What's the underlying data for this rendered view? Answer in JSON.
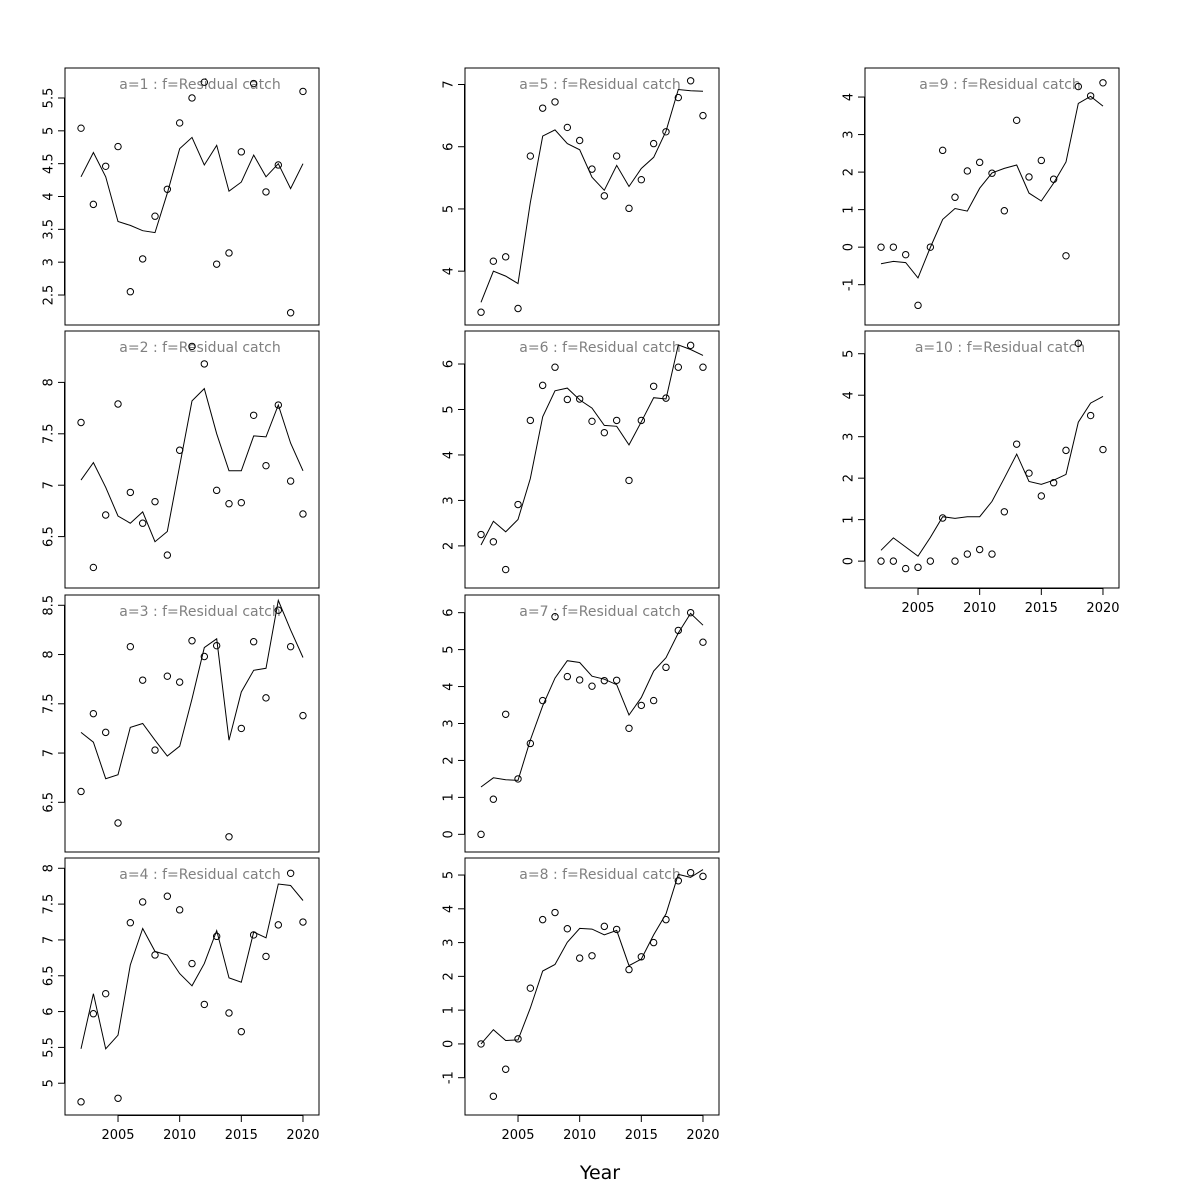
{
  "figure": {
    "xlabel": "Year",
    "colors": {
      "axes": "#000000",
      "title": "#808080",
      "background": "#ffffff"
    }
  },
  "chart_data": [
    {
      "type": "scatter",
      "title": "a=1  :  f=Residual catch",
      "ylim": [
        2.2,
        5.8
      ],
      "yticks": [
        2.5,
        3.0,
        3.5,
        4.0,
        4.5,
        5.0,
        5.5
      ],
      "x": [
        2002,
        2003,
        2004,
        2005,
        2006,
        2007,
        2008,
        2009,
        2010,
        2011,
        2012,
        2013,
        2014,
        2015,
        2016,
        2017,
        2018,
        2019,
        2020
      ],
      "series": [
        {
          "type": "points",
          "values": [
            5.04,
            3.88,
            4.46,
            4.76,
            2.55,
            3.05,
            3.7,
            4.11,
            5.12,
            5.5,
            5.74,
            2.97,
            3.14,
            4.68,
            5.72,
            4.07,
            4.48,
            2.23,
            5.6
          ]
        },
        {
          "type": "line",
          "values": [
            4.3,
            4.67,
            4.3,
            3.62,
            3.56,
            3.48,
            3.45,
            4.05,
            4.73,
            4.9,
            4.48,
            4.78,
            4.08,
            4.22,
            4.63,
            4.3,
            4.5,
            4.12,
            4.5
          ]
        }
      ],
      "show_x_axis": false
    },
    {
      "type": "scatter",
      "title": "a=2  :  f=Residual catch",
      "ylim": [
        6.1,
        8.4
      ],
      "yticks": [
        6.5,
        7.0,
        7.5,
        8.0
      ],
      "x": [
        2002,
        2003,
        2004,
        2005,
        2006,
        2007,
        2008,
        2009,
        2010,
        2011,
        2012,
        2013,
        2014,
        2015,
        2016,
        2017,
        2018,
        2019,
        2020
      ],
      "series": [
        {
          "type": "points",
          "values": [
            7.61,
            6.2,
            6.71,
            7.79,
            6.93,
            6.63,
            6.84,
            6.32,
            7.34,
            8.35,
            8.18,
            6.95,
            6.82,
            6.83,
            7.68,
            7.19,
            7.78,
            7.04,
            6.72
          ]
        },
        {
          "type": "line",
          "values": [
            7.05,
            7.22,
            6.98,
            6.7,
            6.63,
            6.74,
            6.45,
            6.55,
            7.19,
            7.82,
            7.94,
            7.5,
            7.14,
            7.14,
            7.48,
            7.47,
            7.78,
            7.41,
            7.14
          ]
        }
      ],
      "show_x_axis": false
    },
    {
      "type": "scatter",
      "title": "a=3  :  f=Residual catch",
      "ylim": [
        6.1,
        8.5
      ],
      "yticks": [
        6.5,
        7.0,
        7.5,
        8.0,
        8.5
      ],
      "x": [
        2002,
        2003,
        2004,
        2005,
        2006,
        2007,
        2008,
        2009,
        2010,
        2011,
        2012,
        2013,
        2014,
        2015,
        2016,
        2017,
        2018,
        2019,
        2020
      ],
      "series": [
        {
          "type": "points",
          "values": [
            6.61,
            7.4,
            7.21,
            6.29,
            8.08,
            7.74,
            7.03,
            7.78,
            7.72,
            8.14,
            7.98,
            8.09,
            6.15,
            7.25,
            8.13,
            7.56,
            8.45,
            8.08,
            7.38
          ]
        },
        {
          "type": "line",
          "values": [
            7.21,
            7.11,
            6.74,
            6.78,
            7.26,
            7.3,
            7.13,
            6.97,
            7.07,
            7.55,
            8.07,
            8.16,
            7.13,
            7.62,
            7.84,
            7.86,
            8.55,
            8.25,
            7.97
          ]
        }
      ],
      "show_x_axis": false
    },
    {
      "type": "scatter",
      "title": "a=4  :  f=Residual catch",
      "ylim": [
        4.7,
        8.0
      ],
      "yticks": [
        5.0,
        5.5,
        6.0,
        6.5,
        7.0,
        7.5,
        8.0
      ],
      "x": [
        2002,
        2003,
        2004,
        2005,
        2006,
        2007,
        2008,
        2009,
        2010,
        2011,
        2012,
        2013,
        2014,
        2015,
        2016,
        2017,
        2018,
        2019,
        2020
      ],
      "series": [
        {
          "type": "points",
          "values": [
            4.74,
            5.97,
            6.25,
            4.79,
            7.24,
            7.53,
            6.79,
            7.61,
            7.42,
            6.67,
            6.1,
            7.05,
            5.98,
            5.72,
            7.07,
            6.77,
            7.21,
            7.93,
            7.25
          ]
        },
        {
          "type": "line",
          "values": [
            5.48,
            6.25,
            5.48,
            5.67,
            6.65,
            7.16,
            6.84,
            6.79,
            6.53,
            6.36,
            6.67,
            7.13,
            6.47,
            6.41,
            7.11,
            7.03,
            7.78,
            7.76,
            7.55
          ]
        }
      ],
      "xticks": [
        2005,
        2010,
        2015,
        2020
      ],
      "show_x_axis": true
    },
    {
      "type": "scatter",
      "title": "a=5  :  f=Residual catch",
      "ylim": [
        3.3,
        7.1
      ],
      "yticks": [
        4,
        5,
        6,
        7
      ],
      "x": [
        2002,
        2003,
        2004,
        2005,
        2006,
        2007,
        2008,
        2009,
        2010,
        2011,
        2012,
        2013,
        2014,
        2015,
        2016,
        2017,
        2018,
        2019,
        2020
      ],
      "series": [
        {
          "type": "points",
          "values": [
            3.34,
            4.16,
            4.23,
            3.4,
            5.85,
            6.62,
            6.72,
            6.31,
            6.1,
            5.64,
            5.21,
            5.85,
            5.01,
            5.47,
            6.05,
            6.24,
            6.79,
            7.06,
            6.5
          ]
        },
        {
          "type": "line",
          "values": [
            3.5,
            4.0,
            3.92,
            3.8,
            5.1,
            6.17,
            6.27,
            6.05,
            5.95,
            5.51,
            5.3,
            5.7,
            5.36,
            5.65,
            5.83,
            6.25,
            6.92,
            6.9,
            6.89
          ]
        }
      ],
      "show_x_axis": false
    },
    {
      "type": "scatter",
      "title": "a=6  :  f=Residual catch",
      "ylim": [
        1.3,
        6.5
      ],
      "yticks": [
        2,
        3,
        4,
        5,
        6
      ],
      "x": [
        2002,
        2003,
        2004,
        2005,
        2006,
        2007,
        2008,
        2009,
        2010,
        2011,
        2012,
        2013,
        2014,
        2015,
        2016,
        2017,
        2018,
        2019,
        2020
      ],
      "series": [
        {
          "type": "points",
          "values": [
            2.25,
            2.09,
            1.48,
            2.91,
            4.76,
            5.53,
            5.93,
            5.22,
            5.23,
            4.74,
            4.49,
            4.76,
            3.44,
            4.76,
            5.51,
            5.25,
            5.93,
            6.41,
            5.93
          ]
        },
        {
          "type": "line",
          "values": [
            2.02,
            2.54,
            2.31,
            2.58,
            3.48,
            4.84,
            5.41,
            5.47,
            5.21,
            5.03,
            4.65,
            4.63,
            4.22,
            4.73,
            5.26,
            5.23,
            6.42,
            6.32,
            6.19
          ]
        }
      ],
      "show_x_axis": false
    },
    {
      "type": "scatter",
      "title": "a=7  :  f=Residual catch",
      "ylim": [
        -0.2,
        6.2
      ],
      "yticks": [
        0,
        1,
        2,
        3,
        4,
        5,
        6
      ],
      "x": [
        2002,
        2003,
        2004,
        2005,
        2006,
        2007,
        2008,
        2009,
        2010,
        2011,
        2012,
        2013,
        2014,
        2015,
        2016,
        2017,
        2018,
        2019,
        2020
      ],
      "series": [
        {
          "type": "points",
          "values": [
            0.0,
            0.95,
            3.25,
            1.5,
            2.46,
            3.62,
            5.89,
            4.27,
            4.18,
            4.01,
            4.16,
            4.17,
            2.87,
            3.49,
            3.62,
            4.52,
            5.52,
            6.0,
            5.2
          ]
        },
        {
          "type": "line",
          "values": [
            1.28,
            1.53,
            1.48,
            1.46,
            2.55,
            3.48,
            4.23,
            4.7,
            4.65,
            4.28,
            4.2,
            4.05,
            3.23,
            3.7,
            4.42,
            4.78,
            5.45,
            5.98,
            5.66
          ]
        }
      ],
      "show_x_axis": false
    },
    {
      "type": "scatter",
      "title": "a=8  :  f=Residual catch",
      "ylim": [
        -1.8,
        5.2
      ],
      "yticks": [
        -1,
        0,
        1,
        2,
        3,
        4,
        5
      ],
      "x": [
        2002,
        2003,
        2004,
        2005,
        2006,
        2007,
        2008,
        2009,
        2010,
        2011,
        2012,
        2013,
        2014,
        2015,
        2016,
        2017,
        2018,
        2019,
        2020
      ],
      "series": [
        {
          "type": "points",
          "values": [
            0.0,
            -1.55,
            -0.75,
            0.15,
            1.65,
            3.68,
            3.89,
            3.41,
            2.54,
            2.61,
            3.48,
            3.39,
            2.2,
            2.58,
            3.0,
            3.68,
            4.83,
            5.07,
            4.96
          ]
        },
        {
          "type": "line",
          "values": [
            0.0,
            0.42,
            0.1,
            0.12,
            1.06,
            2.16,
            2.35,
            3.01,
            3.42,
            3.4,
            3.23,
            3.36,
            2.32,
            2.51,
            3.23,
            3.85,
            5.02,
            4.93,
            5.16
          ]
        }
      ],
      "xticks": [
        2005,
        2010,
        2015,
        2020
      ],
      "show_x_axis": true
    },
    {
      "type": "scatter",
      "title": "a=9  :  f=Residual catch",
      "ylim": [
        -1.8,
        4.5
      ],
      "yticks": [
        -1,
        0,
        1,
        2,
        3,
        4
      ],
      "x": [
        2002,
        2003,
        2004,
        2005,
        2006,
        2007,
        2008,
        2009,
        2010,
        2011,
        2012,
        2013,
        2014,
        2015,
        2016,
        2017,
        2018,
        2019,
        2020
      ],
      "series": [
        {
          "type": "points",
          "values": [
            0.0,
            0.0,
            -0.2,
            -1.55,
            0.0,
            2.58,
            1.33,
            2.03,
            2.26,
            1.97,
            0.97,
            3.38,
            1.87,
            2.31,
            1.81,
            -0.23,
            4.28,
            4.03,
            4.38
          ]
        },
        {
          "type": "line",
          "values": [
            -0.44,
            -0.38,
            -0.41,
            -0.82,
            -0.01,
            0.74,
            1.03,
            0.96,
            1.57,
            1.98,
            2.1,
            2.19,
            1.44,
            1.23,
            1.71,
            2.27,
            3.83,
            4.02,
            3.76
          ]
        }
      ],
      "show_x_axis": false
    },
    {
      "type": "scatter",
      "title": "a=10  :  f=Residual catch",
      "ylim": [
        -0.4,
        5.3
      ],
      "yticks": [
        0,
        1,
        2,
        3,
        4,
        5
      ],
      "x": [
        2002,
        2003,
        2004,
        2005,
        2006,
        2007,
        2008,
        2009,
        2010,
        2011,
        2012,
        2013,
        2014,
        2015,
        2016,
        2017,
        2018,
        2019,
        2020
      ],
      "series": [
        {
          "type": "points",
          "values": [
            0.0,
            0.0,
            -0.18,
            -0.15,
            0.0,
            1.04,
            0.0,
            0.17,
            0.28,
            0.17,
            1.19,
            2.82,
            2.12,
            1.57,
            1.89,
            2.67,
            5.25,
            3.51,
            2.69
          ]
        },
        {
          "type": "line",
          "values": [
            0.26,
            0.56,
            0.34,
            0.12,
            0.57,
            1.07,
            1.03,
            1.07,
            1.07,
            1.44,
            2.0,
            2.58,
            1.92,
            1.85,
            1.95,
            2.09,
            3.35,
            3.81,
            3.97
          ]
        }
      ],
      "xticks": [
        2005,
        2010,
        2015,
        2020
      ],
      "show_x_axis": true
    }
  ]
}
